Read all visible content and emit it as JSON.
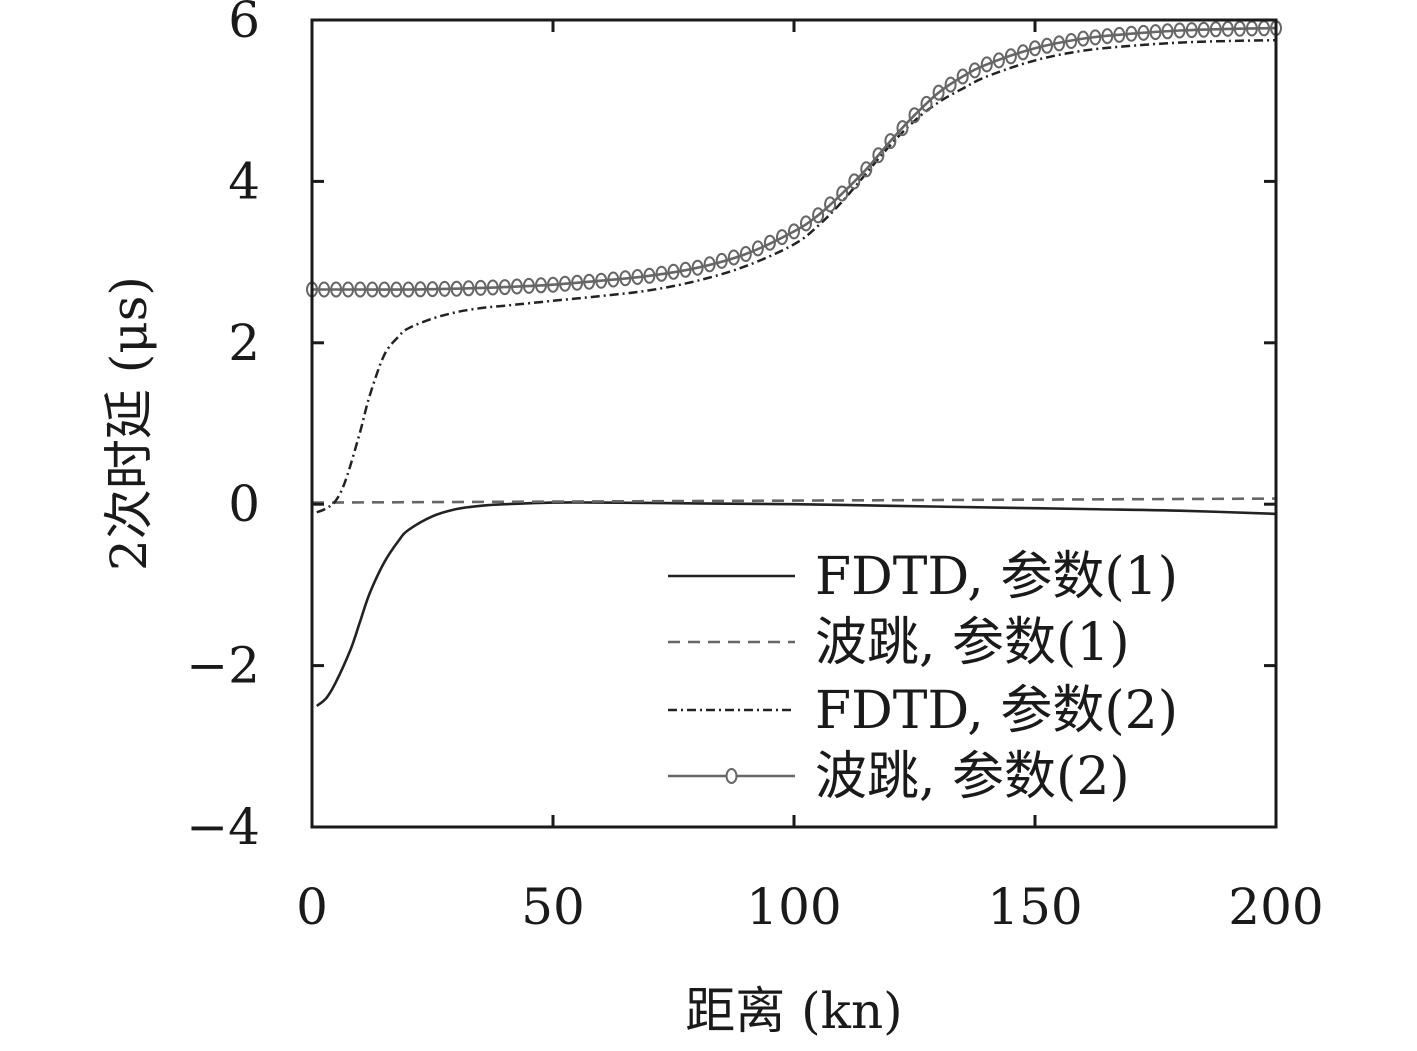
{
  "chart_data": {
    "type": "line",
    "title": "",
    "xlabel": "距离 (kn)",
    "ylabel": "2次时延 (μs)",
    "xlim": [
      0,
      200
    ],
    "ylim": [
      -4,
      6
    ],
    "xticks": [
      0,
      50,
      100,
      150,
      200
    ],
    "yticks": [
      -4,
      -2,
      0,
      2,
      4,
      6
    ],
    "xtick_labels": [
      "0",
      "50",
      "100",
      "150",
      "200"
    ],
    "ytick_labels": [
      "−4",
      "−2",
      "0",
      "2",
      "4",
      "6"
    ],
    "grid": false,
    "legend_position": "bottom-right",
    "series": [
      {
        "name": "FDTD, 参数(1)",
        "style": "solid",
        "color": "#222222",
        "x": [
          1,
          3,
          5,
          8,
          10,
          12,
          15,
          18,
          20,
          25,
          30,
          35,
          40,
          50,
          60,
          80,
          100,
          120,
          140,
          160,
          180,
          200
        ],
        "y": [
          -2.5,
          -2.4,
          -2.2,
          -1.8,
          -1.45,
          -1.1,
          -0.72,
          -0.45,
          -0.32,
          -0.15,
          -0.06,
          -0.02,
          0.0,
          0.02,
          0.02,
          0.01,
          0.0,
          -0.02,
          -0.04,
          -0.06,
          -0.08,
          -0.12
        ]
      },
      {
        "name": "波跳, 参数(1)",
        "style": "dashed",
        "color": "#666666",
        "x": [
          0,
          200
        ],
        "y": [
          0.02,
          0.07
        ]
      },
      {
        "name": "FDTD, 参数(2)",
        "style": "dashdot",
        "color": "#222222",
        "x": [
          1,
          3,
          5,
          7,
          10,
          12,
          15,
          18,
          20,
          25,
          30,
          35,
          40,
          50,
          60,
          70,
          80,
          90,
          100,
          105,
          110,
          115,
          120,
          125,
          130,
          135,
          140,
          150,
          160,
          170,
          180,
          190,
          200
        ],
        "y": [
          -0.1,
          -0.05,
          0.05,
          0.3,
          0.9,
          1.35,
          1.85,
          2.08,
          2.18,
          2.3,
          2.38,
          2.43,
          2.46,
          2.52,
          2.58,
          2.65,
          2.77,
          2.95,
          3.22,
          3.45,
          3.75,
          4.1,
          4.45,
          4.75,
          4.98,
          5.15,
          5.3,
          5.5,
          5.62,
          5.68,
          5.72,
          5.74,
          5.75
        ]
      },
      {
        "name": "波跳, 参数(2)",
        "style": "solid-marker",
        "color": "#666666",
        "x": [
          0,
          10,
          20,
          30,
          40,
          50,
          60,
          70,
          80,
          90,
          100,
          105,
          110,
          115,
          120,
          125,
          130,
          135,
          140,
          150,
          160,
          170,
          180,
          190,
          200
        ],
        "y": [
          2.66,
          2.66,
          2.66,
          2.67,
          2.69,
          2.72,
          2.77,
          2.83,
          2.93,
          3.1,
          3.38,
          3.58,
          3.85,
          4.15,
          4.5,
          4.82,
          5.1,
          5.3,
          5.45,
          5.65,
          5.77,
          5.83,
          5.87,
          5.89,
          5.9
        ]
      }
    ]
  }
}
